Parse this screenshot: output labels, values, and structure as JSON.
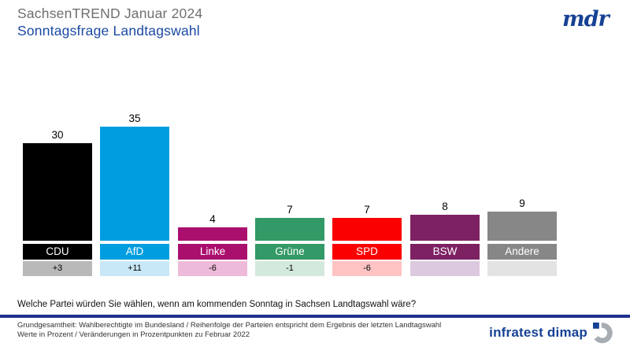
{
  "header": {
    "subtitle": "SachsenTREND Januar 2024",
    "title": "Sonntagsfrage Landtagswahl"
  },
  "branding": {
    "mdr_logo_text": "mdr",
    "infratest_logo_text": "infratest dimap"
  },
  "chart_data": {
    "type": "bar",
    "title": "Sonntagsfrage Landtagswahl",
    "subtitle": "SachsenTREND Januar 2024",
    "unit": "Prozent",
    "ylim": [
      0,
      40
    ],
    "legend": "none",
    "grid": false,
    "categories": [
      "CDU",
      "AfD",
      "Linke",
      "Grüne",
      "SPD",
      "BSW",
      "Andere"
    ],
    "values": [
      30,
      35,
      4,
      7,
      7,
      8,
      9
    ],
    "changes": [
      "+3",
      "+11",
      "-6",
      "-1",
      "-6",
      "",
      ""
    ],
    "parties": [
      {
        "name": "CDU",
        "value": 30,
        "value_label": "30",
        "change": "+3",
        "color": "#000000",
        "change_bg": "#b9b9b9"
      },
      {
        "name": "AfD",
        "value": 35,
        "value_label": "35",
        "change": "+11",
        "color": "#009ee0",
        "change_bg": "#c8e8f7"
      },
      {
        "name": "Linke",
        "value": 4,
        "value_label": "4",
        "change": "-6",
        "color": "#ab0f6e",
        "change_bg": "#eebad9"
      },
      {
        "name": "Grüne",
        "value": 7,
        "value_label": "7",
        "change": "-1",
        "color": "#339966",
        "change_bg": "#d4e9dd"
      },
      {
        "name": "SPD",
        "value": 7,
        "value_label": "7",
        "change": "-6",
        "color": "#fa0000",
        "change_bg": "#ffc3c3"
      },
      {
        "name": "BSW",
        "value": 8,
        "value_label": "8",
        "change": "",
        "color": "#7d2163",
        "change_bg": "#ddc9df"
      },
      {
        "name": "Andere",
        "value": 9,
        "value_label": "9",
        "change": "",
        "color": "#878787",
        "change_bg": "#e3e3e3"
      }
    ]
  },
  "question": "Welche Partei würden Sie wählen, wenn am kommenden Sonntag in Sachsen Landtagswahl wäre?",
  "footer": {
    "line1": "Grundgesamtheit: Wahlberechtigte im Bundesland / Reihenfolge der Parteien entspricht dem Ergebnis der letzten Landtagswahl",
    "line2": "Werte in Prozent / Veränderungen  in Prozentpunkten zu Februar 2022"
  },
  "colors": {
    "subtitle_gray": "#6f6f6f",
    "title_blue": "#1b4aa2",
    "divider_blue": "#20308f",
    "logo_blue": "#164194",
    "logo_gray": "#a7adb3"
  }
}
